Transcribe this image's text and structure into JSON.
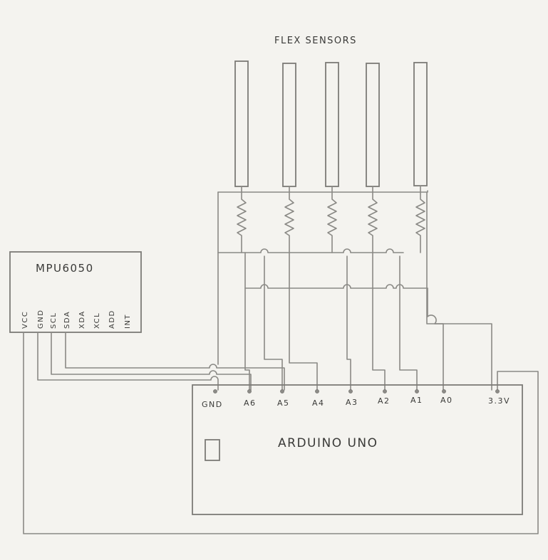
{
  "flex_sensors": {
    "title": "FLEX SENSORS",
    "count": 5
  },
  "mpu": {
    "name": "MPU6050",
    "pins": [
      "VCC",
      "GND",
      "SCL",
      "SDA",
      "XDA",
      "XCL",
      "ADD",
      "INT"
    ]
  },
  "arduino": {
    "name": "ARDUINO UNO",
    "pins": [
      "GND",
      "A6",
      "A5",
      "A4",
      "A3",
      "A2",
      "A1",
      "A0",
      "3.3V"
    ]
  }
}
